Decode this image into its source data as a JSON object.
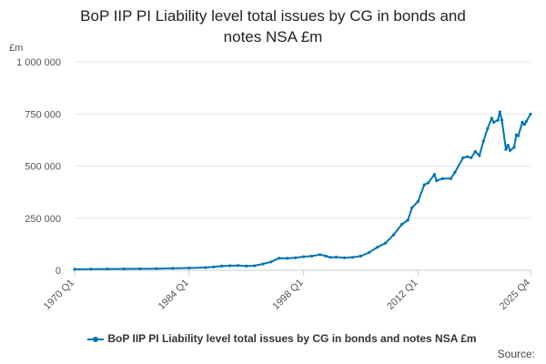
{
  "title_line1": "BoP IIP PI Liability level total issues by CG in bonds and",
  "title_line2": "notes NSA £m",
  "y_unit": "£m",
  "legend_label": "BoP IIP PI Liability level total issues by CG in bonds and notes NSA £m",
  "source_label": "Source:",
  "series_color": "#0075b0",
  "grid_color": "#e6e6e6",
  "chart_data": {
    "type": "line",
    "title": "BoP IIP PI Liability level total issues by CG in bonds and notes NSA £m",
    "ylabel": "£m",
    "ylim": [
      0,
      1000000
    ],
    "y_ticks": [
      0,
      250000,
      500000,
      750000,
      1000000
    ],
    "y_tick_labels": [
      "0",
      "250 000",
      "500 000",
      "750 000",
      "1 000 000"
    ],
    "x_tick_labels": [
      "1970 Q1",
      "1984 Q1",
      "1998 Q1",
      "2012 Q1",
      "2025 Q4"
    ],
    "xlim": [
      "1970 Q1",
      "2025 Q4"
    ],
    "grid": "horizontal",
    "legend_position": "bottom",
    "series": [
      {
        "name": "BoP IIP PI Liability level total issues by CG in bonds and notes NSA £m",
        "points": [
          [
            "1970 Q1",
            5000
          ],
          [
            "1972 Q1",
            5500
          ],
          [
            "1974 Q1",
            6000
          ],
          [
            "1976 Q1",
            6500
          ],
          [
            "1978 Q1",
            7000
          ],
          [
            "1980 Q1",
            8000
          ],
          [
            "1982 Q1",
            9000
          ],
          [
            "1984 Q1",
            11000
          ],
          [
            "1986 Q1",
            13000
          ],
          [
            "1987 Q1",
            16000
          ],
          [
            "1988 Q1",
            20000
          ],
          [
            "1989 Q1",
            22000
          ],
          [
            "1990 Q1",
            23000
          ],
          [
            "1991 Q1",
            20000
          ],
          [
            "1992 Q1",
            22000
          ],
          [
            "1993 Q1",
            30000
          ],
          [
            "1994 Q1",
            40000
          ],
          [
            "1995 Q1",
            58000
          ],
          [
            "1996 Q1",
            57000
          ],
          [
            "1997 Q1",
            60000
          ],
          [
            "1998 Q1",
            65000
          ],
          [
            "1999 Q1",
            68000
          ],
          [
            "2000 Q1",
            75000
          ],
          [
            "2000 Q4",
            68000
          ],
          [
            "2001 Q2",
            62000
          ],
          [
            "2002 Q1",
            63000
          ],
          [
            "2003 Q1",
            60000
          ],
          [
            "2004 Q1",
            62000
          ],
          [
            "2005 Q1",
            68000
          ],
          [
            "2006 Q1",
            85000
          ],
          [
            "2007 Q1",
            110000
          ],
          [
            "2008 Q1",
            130000
          ],
          [
            "2009 Q1",
            170000
          ],
          [
            "2010 Q1",
            220000
          ],
          [
            "2010 Q4",
            240000
          ],
          [
            "2011 Q2",
            300000
          ],
          [
            "2012 Q1",
            330000
          ],
          [
            "2012 Q4",
            410000
          ],
          [
            "2013 Q2",
            420000
          ],
          [
            "2014 Q1",
            460000
          ],
          [
            "2014 Q2",
            430000
          ],
          [
            "2015 Q1",
            440000
          ],
          [
            "2016 Q1",
            440000
          ],
          [
            "2016 Q3",
            470000
          ],
          [
            "2017 Q3",
            540000
          ],
          [
            "2018 Q1",
            545000
          ],
          [
            "2018 Q3",
            540000
          ],
          [
            "2019 Q1",
            570000
          ],
          [
            "2019 Q3",
            550000
          ],
          [
            "2020 Q1",
            620000
          ],
          [
            "2020 Q3",
            680000
          ],
          [
            "2021 Q1",
            730000
          ],
          [
            "2021 Q2",
            710000
          ],
          [
            "2021 Q4",
            720000
          ],
          [
            "2022 Q1",
            760000
          ],
          [
            "2022 Q2",
            720000
          ],
          [
            "2022 Q4",
            580000
          ],
          [
            "2023 Q1",
            600000
          ],
          [
            "2023 Q2",
            575000
          ],
          [
            "2023 Q4",
            590000
          ],
          [
            "2024 Q1",
            650000
          ],
          [
            "2024 Q2",
            645000
          ],
          [
            "2024 Q4",
            710000
          ],
          [
            "2025 Q1",
            700000
          ],
          [
            "2025 Q2",
            715000
          ],
          [
            "2025 Q4",
            750000
          ]
        ]
      }
    ]
  }
}
